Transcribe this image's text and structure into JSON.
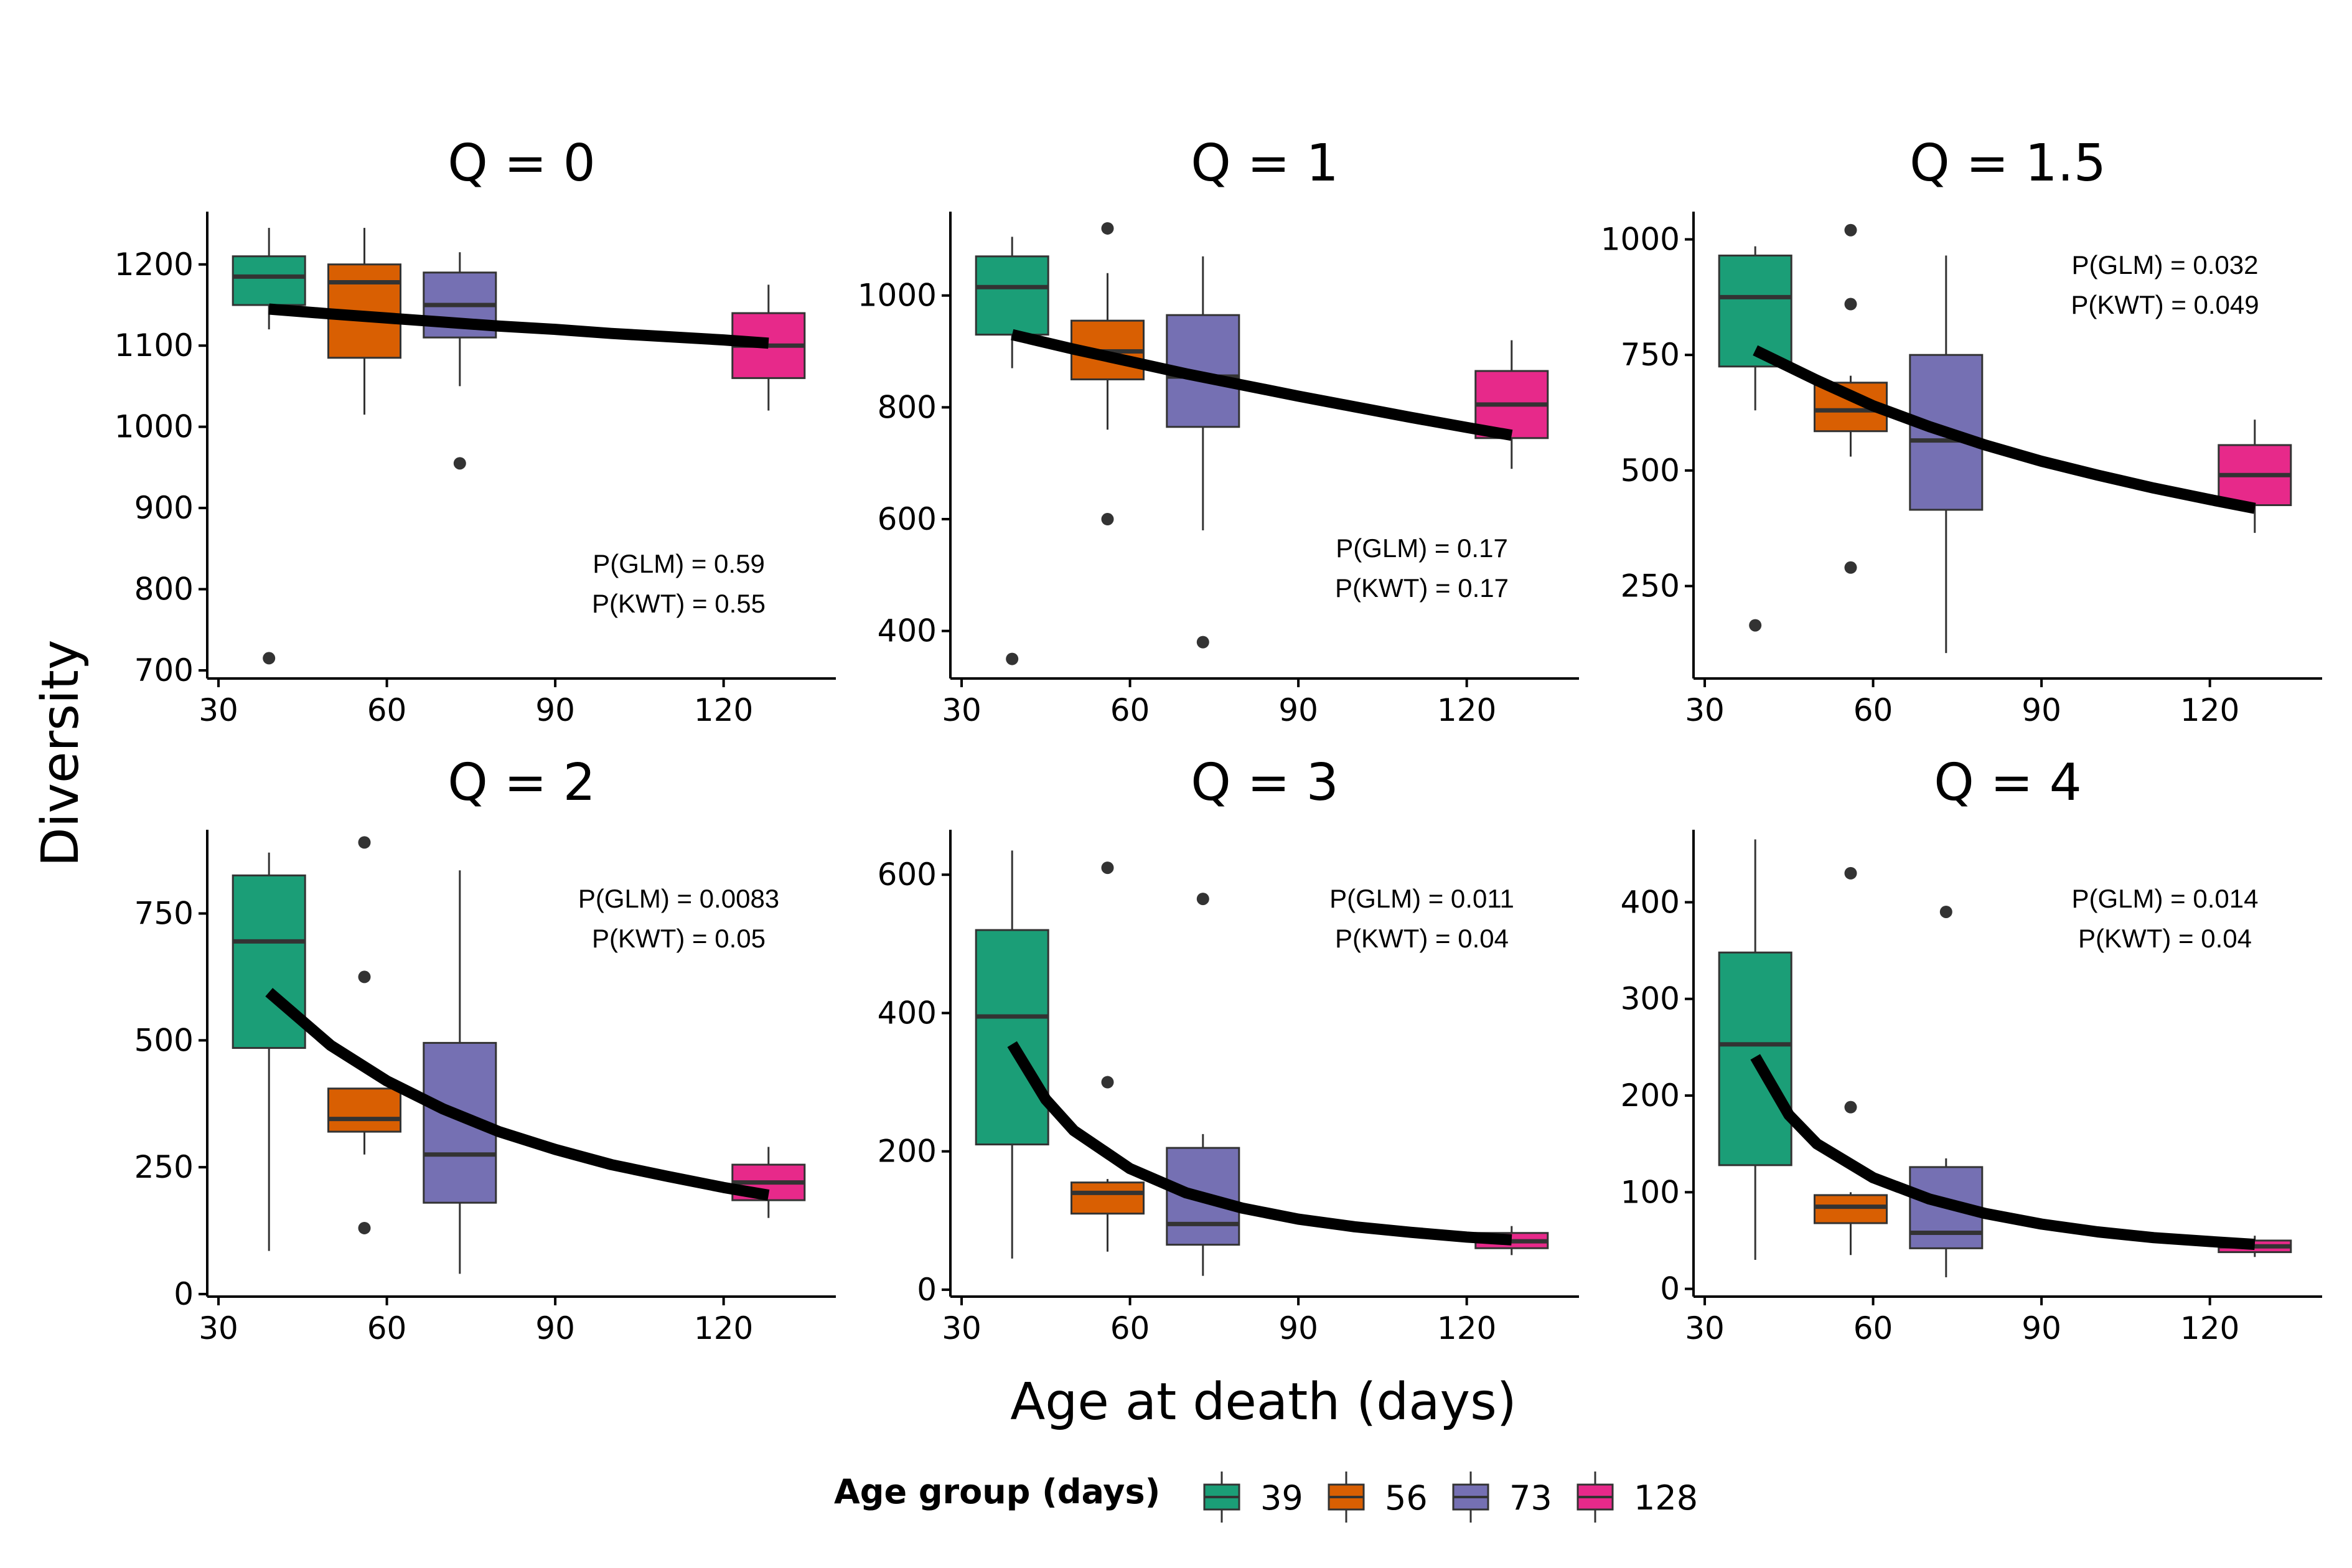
{
  "chart_data": {
    "type": "box",
    "xlabel": "Age at death (days)",
    "ylabel": "Diversity",
    "legend": {
      "title": "Age group (days)",
      "position": "bottom",
      "entries": [
        {
          "label": "39",
          "color": "#1b9e77"
        },
        {
          "label": "56",
          "color": "#d95f02"
        },
        {
          "label": "73",
          "color": "#7570b3"
        },
        {
          "label": "128",
          "color": "#e7298a"
        }
      ]
    },
    "x_ticks": [
      30,
      60,
      90,
      120
    ],
    "xlim": [
      28,
      140
    ],
    "panels": [
      {
        "title": "Q = 0",
        "ylim": [
          690,
          1265
        ],
        "y_ticks": [
          700,
          800,
          900,
          1000,
          1100,
          1200
        ],
        "annotations": [
          "P(GLM) = 0.59",
          "P(KWT) = 0.55"
        ],
        "boxes": [
          {
            "group": "39",
            "x": 39,
            "lower": 1120,
            "q1": 1150,
            "median": 1185,
            "q3": 1210,
            "upper": 1245,
            "outliers": [
              715
            ]
          },
          {
            "group": "56",
            "x": 56,
            "lower": 1015,
            "q1": 1085,
            "median": 1178,
            "q3": 1200,
            "upper": 1245,
            "outliers": []
          },
          {
            "group": "73",
            "x": 73,
            "lower": 1050,
            "q1": 1110,
            "median": 1150,
            "q3": 1190,
            "upper": 1215,
            "outliers": [
              955
            ]
          },
          {
            "group": "128",
            "x": 128,
            "lower": 1020,
            "q1": 1060,
            "median": 1100,
            "q3": 1140,
            "upper": 1175,
            "outliers": []
          }
        ],
        "fit": [
          [
            39,
            1145
          ],
          [
            50,
            1139
          ],
          [
            60,
            1134
          ],
          [
            70,
            1129
          ],
          [
            80,
            1124
          ],
          [
            90,
            1120
          ],
          [
            100,
            1115
          ],
          [
            110,
            1111
          ],
          [
            120,
            1107
          ],
          [
            128,
            1103
          ]
        ]
      },
      {
        "title": "Q = 1",
        "ylim": [
          315,
          1150
        ],
        "y_ticks": [
          400,
          600,
          800,
          1000
        ],
        "annotations": [
          "P(GLM) = 0.17",
          "P(KWT) = 0.17"
        ],
        "boxes": [
          {
            "group": "39",
            "x": 39,
            "lower": 870,
            "q1": 930,
            "median": 1015,
            "q3": 1070,
            "upper": 1105,
            "outliers": [
              350
            ]
          },
          {
            "group": "56",
            "x": 56,
            "lower": 760,
            "q1": 850,
            "median": 900,
            "q3": 955,
            "upper": 1040,
            "outliers": [
              1120,
              600
            ]
          },
          {
            "group": "73",
            "x": 73,
            "lower": 580,
            "q1": 765,
            "median": 855,
            "q3": 965,
            "upper": 1070,
            "outliers": [
              380
            ]
          },
          {
            "group": "128",
            "x": 128,
            "lower": 690,
            "q1": 745,
            "median": 805,
            "q3": 865,
            "upper": 920,
            "outliers": []
          }
        ],
        "fit": [
          [
            39,
            930
          ],
          [
            50,
            904
          ],
          [
            60,
            882
          ],
          [
            70,
            860
          ],
          [
            80,
            840
          ],
          [
            90,
            820
          ],
          [
            100,
            801
          ],
          [
            110,
            782
          ],
          [
            120,
            764
          ],
          [
            128,
            750
          ]
        ]
      },
      {
        "title": "Q = 1.5",
        "ylim": [
          50,
          1060
        ],
        "y_ticks": [
          250,
          500,
          750,
          1000
        ],
        "annotations": [
          "P(GLM) = 0.032",
          "P(KWT) = 0.049"
        ],
        "boxes": [
          {
            "group": "39",
            "x": 39,
            "lower": 630,
            "q1": 725,
            "median": 875,
            "q3": 965,
            "upper": 985,
            "outliers": [
              165
            ]
          },
          {
            "group": "56",
            "x": 56,
            "lower": 530,
            "q1": 585,
            "median": 630,
            "q3": 690,
            "upper": 705,
            "outliers": [
              1020,
              860,
              290
            ]
          },
          {
            "group": "73",
            "x": 73,
            "lower": 105,
            "q1": 415,
            "median": 565,
            "q3": 750,
            "upper": 965,
            "outliers": []
          },
          {
            "group": "128",
            "x": 128,
            "lower": 365,
            "q1": 425,
            "median": 490,
            "q3": 555,
            "upper": 610,
            "outliers": []
          }
        ],
        "fit": [
          [
            39,
            760
          ],
          [
            50,
            695
          ],
          [
            60,
            640
          ],
          [
            70,
            595
          ],
          [
            80,
            555
          ],
          [
            90,
            520
          ],
          [
            100,
            490
          ],
          [
            110,
            462
          ],
          [
            120,
            437
          ],
          [
            128,
            418
          ]
        ]
      },
      {
        "title": "Q = 2",
        "ylim": [
          -5,
          915
        ],
        "y_ticks": [
          0,
          250,
          500,
          750
        ],
        "annotations": [
          "P(GLM) = 0.0083",
          "P(KWT) = 0.05"
        ],
        "boxes": [
          {
            "group": "39",
            "x": 39,
            "lower": 85,
            "q1": 485,
            "median": 695,
            "q3": 825,
            "upper": 870,
            "outliers": []
          },
          {
            "group": "56",
            "x": 56,
            "lower": 275,
            "q1": 320,
            "median": 345,
            "q3": 405,
            "upper": 405,
            "outliers": [
              890,
              625,
              130
            ]
          },
          {
            "group": "73",
            "x": 73,
            "lower": 40,
            "q1": 180,
            "median": 275,
            "q3": 495,
            "upper": 835,
            "outliers": []
          },
          {
            "group": "128",
            "x": 128,
            "lower": 150,
            "q1": 185,
            "median": 220,
            "q3": 255,
            "upper": 290,
            "outliers": []
          }
        ],
        "fit": [
          [
            39,
            595
          ],
          [
            50,
            490
          ],
          [
            60,
            420
          ],
          [
            70,
            365
          ],
          [
            80,
            320
          ],
          [
            90,
            285
          ],
          [
            100,
            255
          ],
          [
            110,
            232
          ],
          [
            120,
            210
          ],
          [
            128,
            195
          ]
        ]
      },
      {
        "title": "Q = 3",
        "ylim": [
          -10,
          665
        ],
        "y_ticks": [
          0,
          200,
          400,
          600
        ],
        "annotations": [
          "P(GLM) = 0.011",
          "P(KWT) = 0.04"
        ],
        "boxes": [
          {
            "group": "39",
            "x": 39,
            "lower": 45,
            "q1": 210,
            "median": 395,
            "q3": 520,
            "upper": 635,
            "outliers": []
          },
          {
            "group": "56",
            "x": 56,
            "lower": 55,
            "q1": 110,
            "median": 140,
            "q3": 155,
            "upper": 160,
            "outliers": [
              610,
              300
            ]
          },
          {
            "group": "73",
            "x": 73,
            "lower": 20,
            "q1": 65,
            "median": 95,
            "q3": 205,
            "upper": 225,
            "outliers": [
              565
            ]
          },
          {
            "group": "128",
            "x": 128,
            "lower": 50,
            "q1": 60,
            "median": 70,
            "q3": 82,
            "upper": 92,
            "outliers": []
          }
        ],
        "fit": [
          [
            39,
            355
          ],
          [
            45,
            275
          ],
          [
            50,
            230
          ],
          [
            60,
            175
          ],
          [
            70,
            140
          ],
          [
            80,
            118
          ],
          [
            90,
            102
          ],
          [
            100,
            91
          ],
          [
            110,
            83
          ],
          [
            120,
            76
          ],
          [
            128,
            72
          ]
        ]
      },
      {
        "title": "Q = 4",
        "ylim": [
          -8,
          475
        ],
        "y_ticks": [
          0,
          100,
          200,
          300,
          400
        ],
        "annotations": [
          "P(GLM) = 0.014",
          "P(KWT) = 0.04"
        ],
        "boxes": [
          {
            "group": "39",
            "x": 39,
            "lower": 30,
            "q1": 128,
            "median": 253,
            "q3": 348,
            "upper": 465,
            "outliers": []
          },
          {
            "group": "56",
            "x": 56,
            "lower": 35,
            "q1": 68,
            "median": 85,
            "q3": 97,
            "upper": 100,
            "outliers": [
              430,
              188
            ]
          },
          {
            "group": "73",
            "x": 73,
            "lower": 12,
            "q1": 42,
            "median": 58,
            "q3": 126,
            "upper": 135,
            "outliers": [
              390
            ]
          },
          {
            "group": "128",
            "x": 128,
            "lower": 33,
            "q1": 38,
            "median": 44,
            "q3": 50,
            "upper": 55,
            "outliers": []
          }
        ],
        "fit": [
          [
            39,
            240
          ],
          [
            45,
            180
          ],
          [
            50,
            150
          ],
          [
            60,
            115
          ],
          [
            70,
            93
          ],
          [
            80,
            78
          ],
          [
            90,
            67
          ],
          [
            100,
            59
          ],
          [
            110,
            53
          ],
          [
            120,
            49
          ],
          [
            128,
            46
          ]
        ]
      }
    ]
  }
}
